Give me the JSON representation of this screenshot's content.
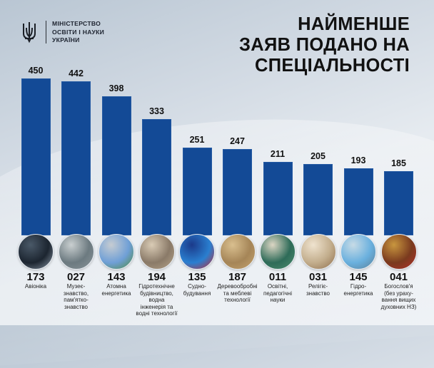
{
  "header": {
    "logo_lines": [
      "МІНІСТЕРСТВО",
      "ОСВІТИ І НАУКИ",
      "УКРАЇНИ"
    ],
    "title_lines": [
      "НАЙМЕНШЕ",
      "ЗАЯВ ПОДАНО НА",
      "СПЕЦІАЛЬНОСТІ"
    ]
  },
  "colors": {
    "bar": "#134a96",
    "text": "#111111",
    "background": "#dfe5ec"
  },
  "chart_data": {
    "type": "bar",
    "title": "НАЙМЕНШЕ ЗАЯВ ПОДАНО НА СПЕЦІАЛЬНОСТІ",
    "xlabel": "",
    "ylabel": "",
    "ylim": [
      0,
      450
    ],
    "grid": false,
    "legend": null,
    "categories": [
      "173 Авіоніка",
      "027 Музеєзнавство, пам'яткознавство",
      "143 Атомна енергетика",
      "194 Гідротехнічне будівництво, водна інженерія та водні технології",
      "135 Суднобудування",
      "187 Деревообробні та меблеві технології",
      "011 Освітні, педагогічні науки",
      "031 Релігієзнавство",
      "145 Гідроенергетика",
      "041 Богослов'я (без урахування вищих духовних НЗ)"
    ],
    "values": [
      450,
      442,
      398,
      333,
      251,
      247,
      211,
      205,
      193,
      185
    ]
  },
  "bars": [
    {
      "value": "450",
      "code": "173",
      "label": [
        "Авіоніка"
      ],
      "image": "cockpit-photo"
    },
    {
      "value": "442",
      "code": "027",
      "label": [
        "Музеє-",
        "знавство,",
        "пам'ятко-",
        "знавство"
      ],
      "image": "statue-photo"
    },
    {
      "value": "398",
      "code": "143",
      "label": [
        "Атомна",
        "енергетика"
      ],
      "image": "nuclear-plant-photo"
    },
    {
      "value": "333",
      "code": "194",
      "label": [
        "Гідротехнічне",
        "будівництво,",
        "водна",
        "інженерія та",
        "водні технології"
      ],
      "image": "dam-photo"
    },
    {
      "value": "251",
      "code": "135",
      "label": [
        "Судно-",
        "будування"
      ],
      "image": "ship-photo"
    },
    {
      "value": "247",
      "code": "187",
      "label": [
        "Деревообробні",
        "та меблеві",
        "технології"
      ],
      "image": "lumber-photo"
    },
    {
      "value": "211",
      "code": "011",
      "label": [
        "Освітні,",
        "педагогічні",
        "науки"
      ],
      "image": "classroom-photo"
    },
    {
      "value": "205",
      "code": "031",
      "label": [
        "Релігіє-",
        "знавство"
      ],
      "image": "praying-hands-photo"
    },
    {
      "value": "193",
      "code": "145",
      "label": [
        "Гідро-",
        "енергетика"
      ],
      "image": "bridge-photo"
    },
    {
      "value": "185",
      "code": "041",
      "label": [
        "Богослов'я",
        "(без ураху-",
        "вання вищих",
        "духовних НЗ)"
      ],
      "image": "icon-painting-photo"
    }
  ]
}
